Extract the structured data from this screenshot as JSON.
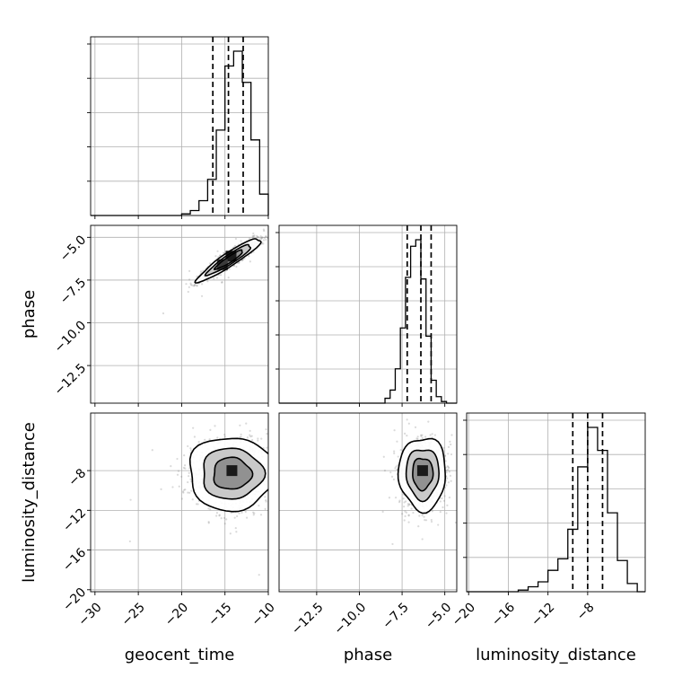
{
  "chart_data": {
    "type": "corner",
    "parameters": [
      "geocent_time",
      "phase",
      "luminosity_distance"
    ],
    "axis_labels": {
      "geocent_time": "geocent_time",
      "phase": "phase",
      "luminosity_distance": "luminosity_distance"
    },
    "ranges": {
      "geocent_time": [
        -30.5,
        -10
      ],
      "phase": [
        -14.7,
        -4.3
      ],
      "luminosity_distance": [
        -20.2,
        -2.2
      ]
    },
    "ticks": {
      "geocent_time": [
        -30,
        -25,
        -20,
        -15,
        -10
      ],
      "phase": [
        -12.5,
        -10.0,
        -7.5,
        -5.0
      ],
      "luminosity_distance": [
        -20,
        -16,
        -12,
        -8
      ]
    },
    "tick_labels": {
      "geocent_time": [
        "−30",
        "−25",
        "−20",
        "−15",
        "−10"
      ],
      "phase": [
        "−12.5",
        "−10.0",
        "−7.5",
        "−5.0"
      ],
      "luminosity_distance": [
        "−20",
        "−16",
        "−12",
        "−8"
      ]
    },
    "quantile_lines": {
      "geocent_time": [
        -16.4,
        -14.6,
        -12.9
      ],
      "phase": [
        -7.2,
        -6.4,
        -5.8
      ],
      "luminosity_distance": [
        -9.5,
        -8.0,
        -6.5
      ]
    },
    "histograms": {
      "geocent_time": {
        "bin_edges": [
          -20,
          -19,
          -18,
          -17,
          -16,
          -15,
          -14,
          -13,
          -12,
          -11,
          -10
        ],
        "counts": [
          1,
          3,
          9,
          22,
          52,
          91,
          100,
          81,
          46,
          13
        ]
      },
      "phase": {
        "bin_edges": [
          -8.5,
          -8.2,
          -7.9,
          -7.6,
          -7.3,
          -7.0,
          -6.7,
          -6.4,
          -6.1,
          -5.8,
          -5.5,
          -5.2,
          -4.9,
          -4.6
        ],
        "counts": [
          3,
          8,
          21,
          46,
          77,
          96,
          100,
          76,
          41,
          14,
          4,
          1,
          0
        ]
      },
      "luminosity_distance": {
        "bin_edges": [
          -15,
          -14,
          -13,
          -12,
          -11,
          -10,
          -9,
          -8,
          -7,
          -6,
          -5,
          -4,
          -3
        ],
        "counts": [
          1,
          3,
          6,
          13,
          20,
          38,
          76,
          100,
          86,
          48,
          19,
          5
        ]
      }
    },
    "joint": {
      "phase_vs_geocent_time": {
        "center": [
          -14.5,
          -6.3
        ],
        "spread": [
          1.6,
          0.55
        ],
        "correlation": 0.93,
        "high_density_bins": [
          [
            -14.3,
            -6.1
          ],
          [
            -15.3,
            -6.6
          ]
        ]
      },
      "luminosity_distance_vs_geocent_time": {
        "center": [
          -14.2,
          -8.3
        ],
        "spread": [
          2.2,
          1.6
        ],
        "correlation": 0.0,
        "high_density_bins": [
          [
            -14.2,
            -8.0
          ]
        ]
      },
      "luminosity_distance_vs_phase": {
        "center": [
          -6.3,
          -8.3
        ],
        "spread": [
          0.6,
          1.6
        ],
        "correlation": 0.0,
        "high_density_bins": [
          [
            -6.3,
            -8.0
          ]
        ]
      }
    },
    "contour_levels_sigma": [
      1,
      1.6,
      2.3
    ],
    "grid": true
  }
}
